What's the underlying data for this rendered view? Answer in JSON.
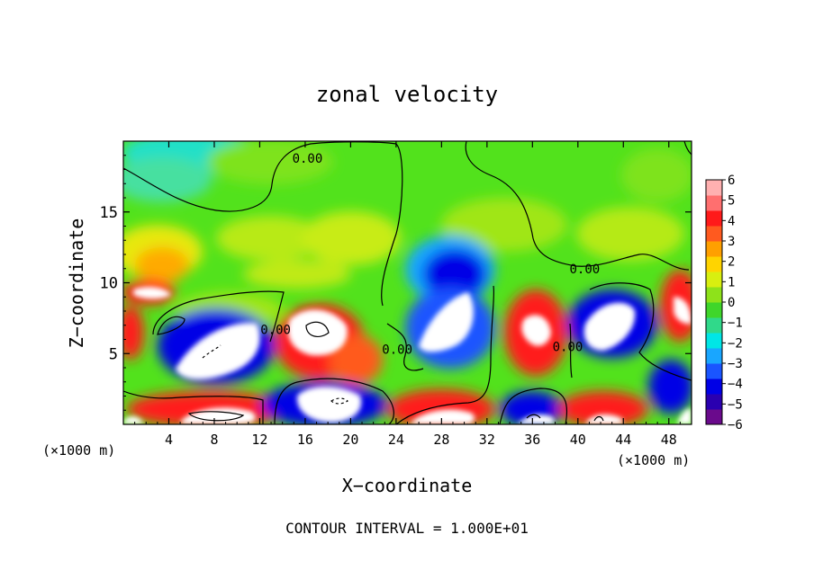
{
  "chart_data": {
    "type": "heatmap",
    "title": "zonal velocity",
    "xlabel": "X−coordinate",
    "ylabel": "Z−coordinate",
    "x_unit_left": "(×1000 m)",
    "x_unit_right": "(×1000 m)",
    "x_ticks": [
      4,
      8,
      12,
      16,
      20,
      24,
      28,
      32,
      36,
      40,
      44,
      48
    ],
    "y_ticks": [
      5,
      10,
      15
    ],
    "xlim": [
      0,
      50
    ],
    "ylim": [
      0,
      20
    ],
    "colorbar": {
      "ticks": [
        6,
        5,
        4,
        3,
        2,
        1,
        0,
        -1,
        -2,
        -3,
        -4,
        -5,
        -6
      ],
      "tick_labels": [
        "6",
        "5",
        "4",
        "3",
        "2",
        "1",
        "0",
        "−1",
        "−2",
        "−3",
        "−4",
        "−5",
        "−6"
      ],
      "range": [
        -6,
        6
      ],
      "colors": [
        "#6a0a8c",
        "#2a00b0",
        "#0000e6",
        "#1a55ff",
        "#19a6ff",
        "#00e6e6",
        "#30d98a",
        "#3fd62a",
        "#8ee21a",
        "#d8ef10",
        "#ffd400",
        "#ffa000",
        "#ff5a1f",
        "#ff1a1a",
        "#ff6f6f",
        "#ffb0b0"
      ]
    },
    "contour_labels": [
      {
        "text": "0.00",
        "x": 16.2,
        "z": 18.8
      },
      {
        "text": "0.00",
        "x": 40.6,
        "z": 11.0
      },
      {
        "text": "0.00",
        "x": 13.4,
        "z": 6.7
      },
      {
        "text": "0.00",
        "x": 24.1,
        "z": 5.3
      },
      {
        "text": "0.00",
        "x": 39.1,
        "z": 5.5
      }
    ],
    "footer": "CONTOUR INTERVAL = 1.000E+01"
  }
}
